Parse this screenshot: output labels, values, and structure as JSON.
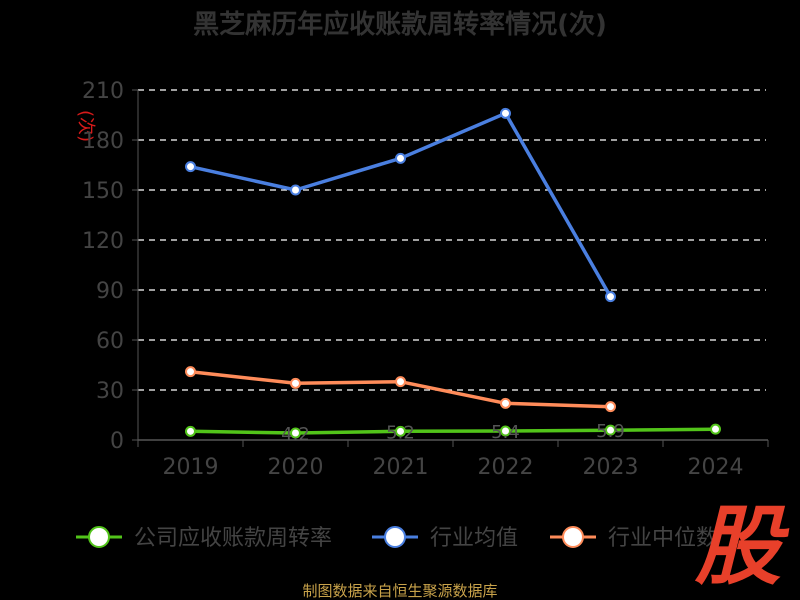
{
  "title": "黑芝麻历年应收账款周转率情况(次)",
  "unit_label": "(次)",
  "source": "制图数据来自恒生聚源数据库",
  "logo_text": "股",
  "colors": {
    "background": "#000000",
    "grid": "#ffffff",
    "axis": "#555555",
    "company": "#52c41a",
    "industry_avg": "#4a7fe0",
    "industry_median": "#ff8c5a"
  },
  "chart_data": {
    "type": "line",
    "title": "黑芝麻历年应收账款周转率情况(次)",
    "xlabel": "",
    "ylabel": "(次)",
    "categories": [
      "2019",
      "2020",
      "2021",
      "2022",
      "2023",
      "2024"
    ],
    "y_ticks": [
      "0",
      "30",
      "60",
      "90",
      "120",
      "150",
      "180",
      "210"
    ],
    "ylim": [
      0,
      210
    ],
    "grid": true,
    "legend_position": "bottom",
    "series": [
      {
        "name": "公司应收账款周转率",
        "color_key": "company",
        "values": [
          5.2,
          4.2,
          5.2,
          5.4,
          5.9,
          6.5
        ],
        "labels": [
          "",
          "4.2",
          "5.2",
          "5.4",
          "5.9",
          ""
        ]
      },
      {
        "name": "行业均值",
        "color_key": "industry_avg",
        "values": [
          164,
          150,
          169,
          196,
          86,
          null
        ],
        "labels": []
      },
      {
        "name": "行业中位数",
        "color_key": "industry_median",
        "values": [
          41,
          34,
          35,
          22,
          20,
          null
        ],
        "labels": []
      }
    ]
  }
}
